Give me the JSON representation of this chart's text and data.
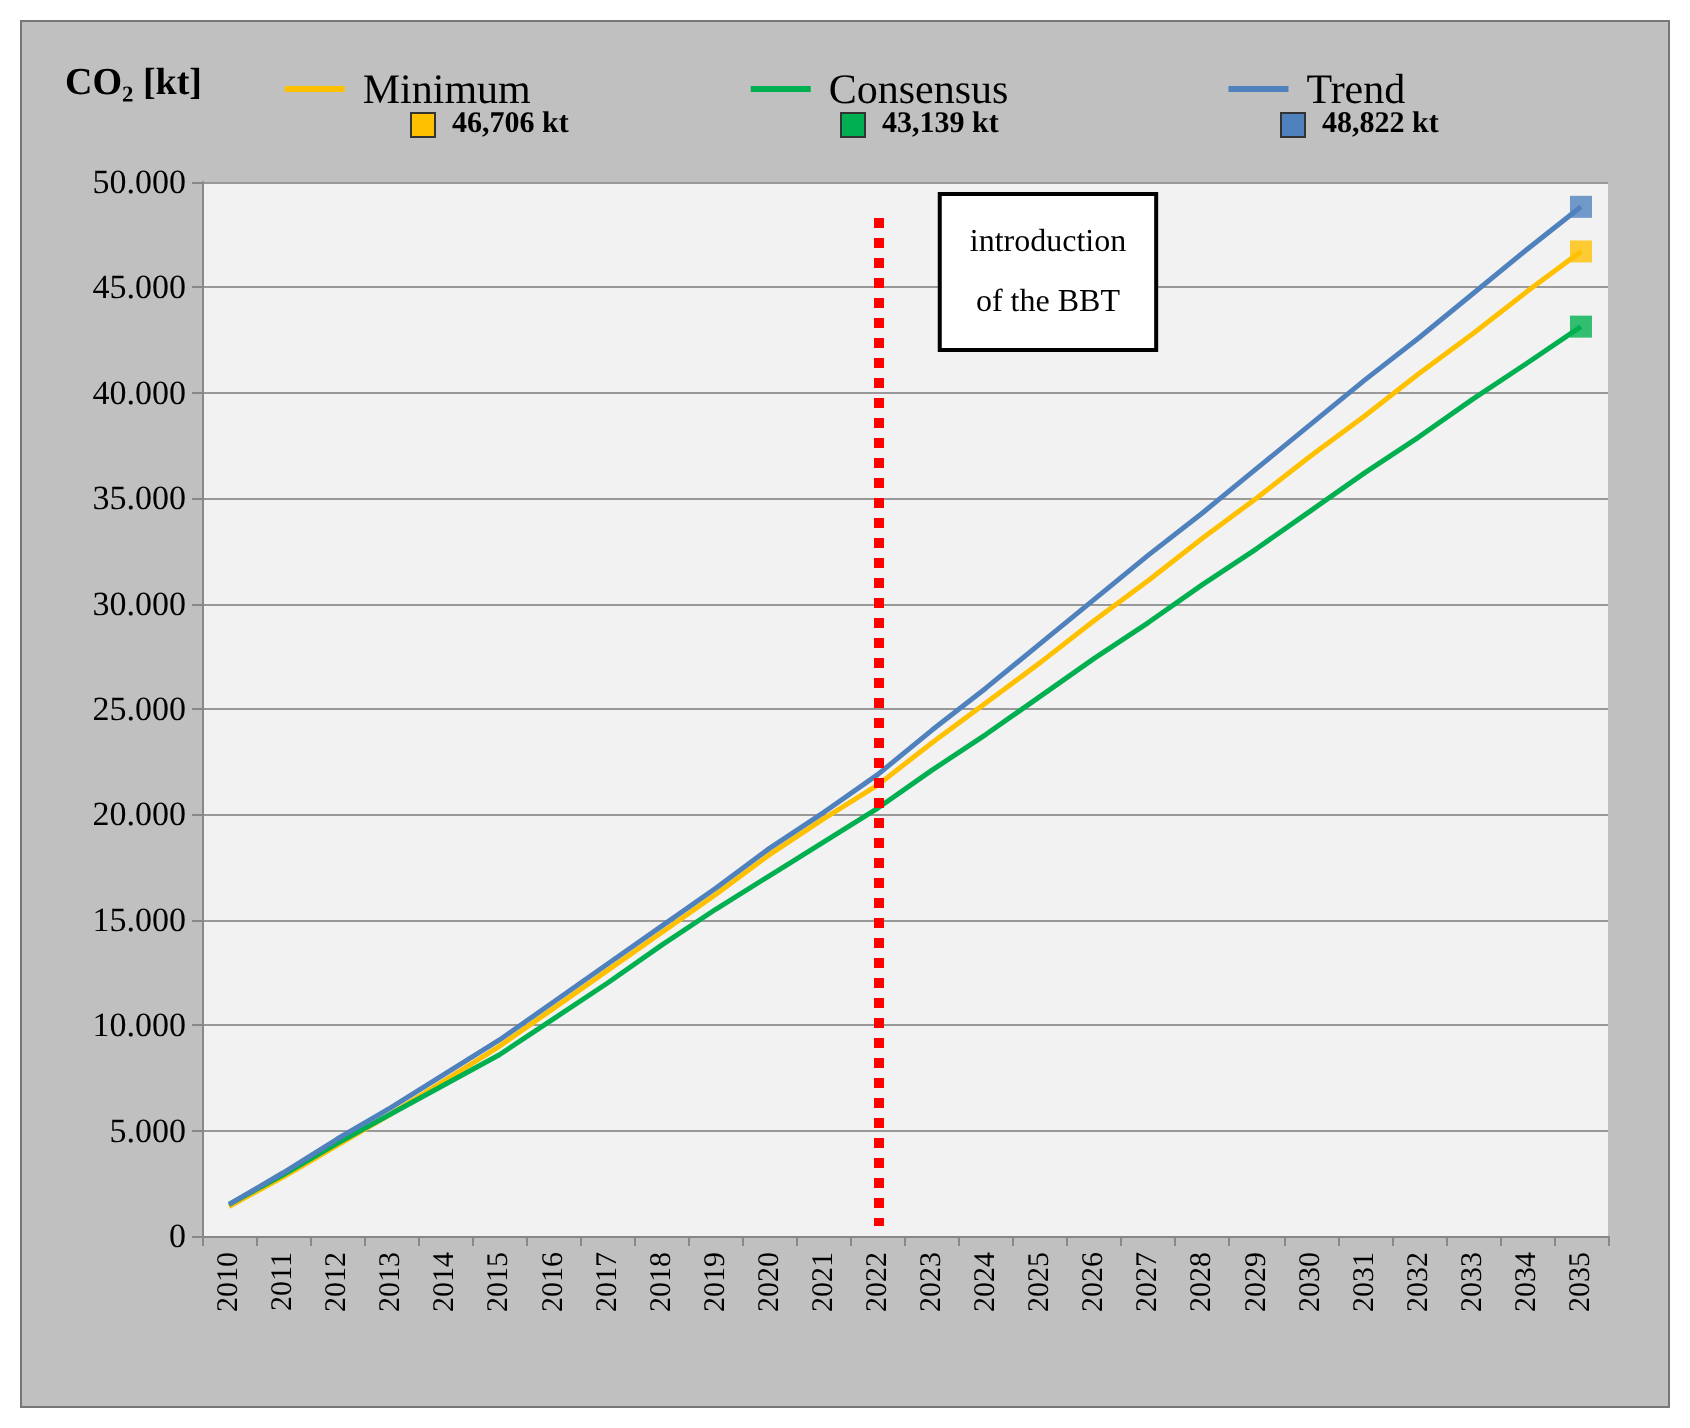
{
  "chart_data": {
    "type": "line",
    "ylabel": "CO₂ [kt]",
    "categories": [
      "2010",
      "2011",
      "2012",
      "2013",
      "2014",
      "2015",
      "2016",
      "2017",
      "2018",
      "2019",
      "2020",
      "2021",
      "2022",
      "2023",
      "2024",
      "2025",
      "2026",
      "2027",
      "2028",
      "2029",
      "2030",
      "2031",
      "2032",
      "2033",
      "2034",
      "2035"
    ],
    "series": [
      {
        "name": "Minimum",
        "color": "#ffc000",
        "values": [
          1400,
          2800,
          4300,
          5800,
          7400,
          9000,
          10800,
          12600,
          14400,
          16200,
          18100,
          19800,
          21400,
          23400,
          25300,
          27200,
          29200,
          31100,
          33100,
          35000,
          37000,
          38900,
          40900,
          42800,
          44800,
          46706
        ]
      },
      {
        "name": "Consensus",
        "color": "#00b050",
        "values": [
          1500,
          2900,
          4400,
          5800,
          7200,
          8600,
          10300,
          12000,
          13800,
          15500,
          17100,
          18700,
          20300,
          22100,
          23800,
          25600,
          27400,
          29100,
          30900,
          32600,
          34400,
          36200,
          37900,
          39700,
          41400,
          43139
        ]
      },
      {
        "name": "Trend",
        "color": "#4f81bd",
        "values": [
          1500,
          3000,
          4600,
          6100,
          7700,
          9300,
          11100,
          12900,
          14700,
          16500,
          18400,
          20100,
          21900,
          24000,
          26000,
          28100,
          30200,
          32300,
          34300,
          36400,
          38500,
          40600,
          42600,
          44700,
          46800,
          48822
        ]
      },
      {
        "type": "scatter",
        "marker": "square",
        "color": "#ffc000",
        "values": [
          null,
          null,
          null,
          null,
          null,
          null,
          null,
          null,
          null,
          null,
          null,
          null,
          null,
          null,
          null,
          null,
          null,
          null,
          null,
          null,
          null,
          null,
          null,
          null,
          null,
          46706
        ]
      },
      {
        "type": "scatter",
        "marker": "square",
        "color": "#00b050",
        "values": [
          null,
          null,
          null,
          null,
          null,
          null,
          null,
          null,
          null,
          null,
          null,
          null,
          null,
          null,
          null,
          null,
          null,
          null,
          null,
          null,
          null,
          null,
          null,
          null,
          null,
          43139
        ]
      },
      {
        "type": "scatter",
        "marker": "square",
        "color": "#4f81bd",
        "values": [
          null,
          null,
          null,
          null,
          null,
          null,
          null,
          null,
          null,
          null,
          null,
          null,
          null,
          null,
          null,
          null,
          null,
          null,
          null,
          null,
          null,
          null,
          null,
          null,
          null,
          48822
        ]
      }
    ],
    "ylim": [
      0,
      50000
    ],
    "yticks": [
      {
        "value": 0,
        "label": "0"
      },
      {
        "value": 5000,
        "label": "5.000"
      },
      {
        "value": 10000,
        "label": "10.000"
      },
      {
        "value": 15000,
        "label": "15.000"
      },
      {
        "value": 20000,
        "label": "20.000"
      },
      {
        "value": 25000,
        "label": "25.000"
      },
      {
        "value": 30000,
        "label": "30.000"
      },
      {
        "value": 35000,
        "label": "35.000"
      },
      {
        "value": 40000,
        "label": "40.000"
      },
      {
        "value": 45000,
        "label": "45.000"
      },
      {
        "value": 50000,
        "label": "50.000"
      }
    ],
    "ref_lines": [
      {
        "axis": "x",
        "value": "2022",
        "label": "introduction\nof the BBT",
        "color": "#ff0000",
        "line_style": "dotted"
      }
    ],
    "annotations": [
      "46,706 kt",
      "43,139 kt",
      "48,822 kt"
    ],
    "grid": "y",
    "legend": "top"
  }
}
